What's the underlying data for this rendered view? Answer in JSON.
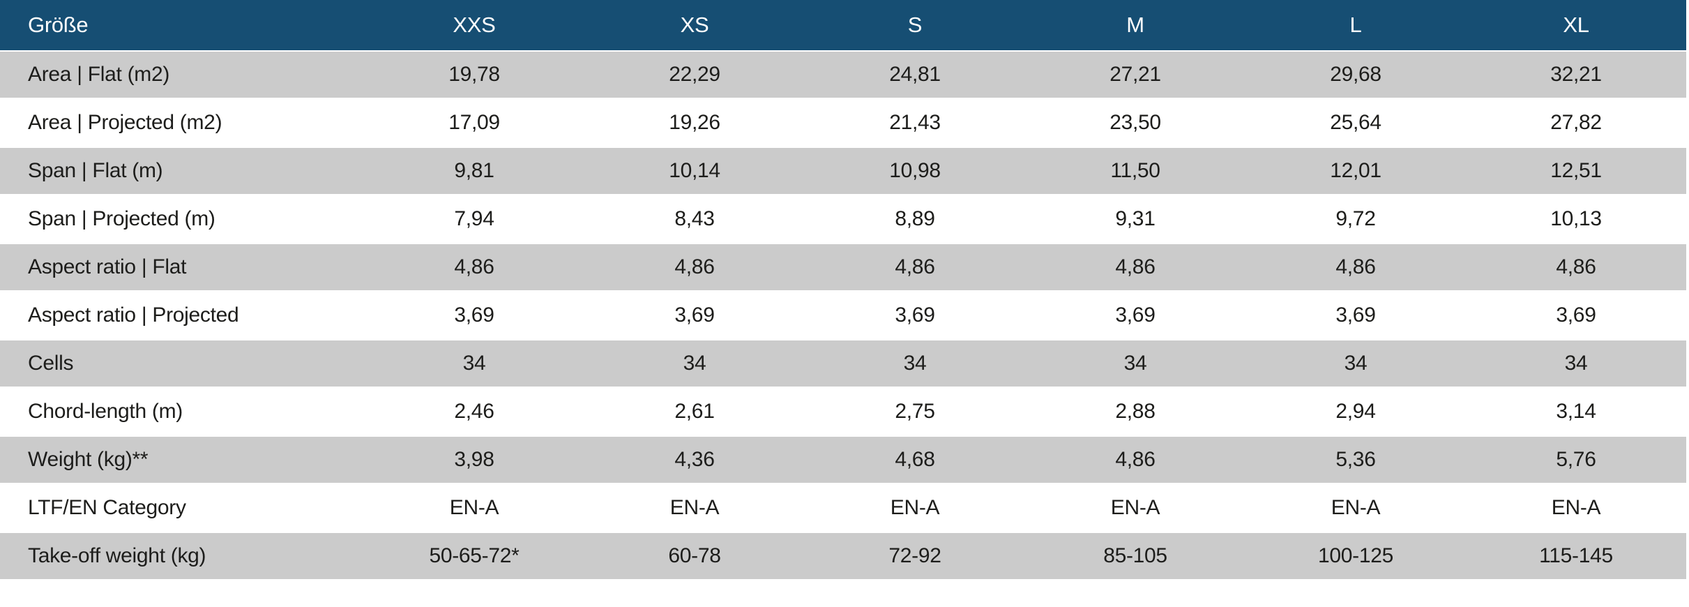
{
  "table": {
    "columns": [
      "Größe",
      "XXS",
      "XS",
      "S",
      "M",
      "L",
      "XL"
    ],
    "rows": [
      {
        "label": "Area | Flat (m2)",
        "values": [
          "19,78",
          "22,29",
          "24,81",
          "27,21",
          "29,68",
          "32,21"
        ]
      },
      {
        "label": "Area | Projected (m2)",
        "values": [
          "17,09",
          "19,26",
          "21,43",
          "23,50",
          "25,64",
          "27,82"
        ]
      },
      {
        "label": "Span | Flat (m)",
        "values": [
          "9,81",
          "10,14",
          "10,98",
          "11,50",
          "12,01",
          "12,51"
        ]
      },
      {
        "label": "Span | Projected (m)",
        "values": [
          "7,94",
          "8,43",
          "8,89",
          "9,31",
          "9,72",
          "10,13"
        ]
      },
      {
        "label": "Aspect ratio | Flat",
        "values": [
          "4,86",
          "4,86",
          "4,86",
          "4,86",
          "4,86",
          "4,86"
        ]
      },
      {
        "label": "Aspect ratio | Projected",
        "values": [
          "3,69",
          "3,69",
          "3,69",
          "3,69",
          "3,69",
          "3,69"
        ]
      },
      {
        "label": "Cells",
        "values": [
          "34",
          "34",
          "34",
          "34",
          "34",
          "34"
        ]
      },
      {
        "label": "Chord-length (m)",
        "values": [
          "2,46",
          "2,61",
          "2,75",
          "2,88",
          "2,94",
          "3,14"
        ]
      },
      {
        "label": "Weight (kg)**",
        "values": [
          "3,98",
          "4,36",
          "4,68",
          "4,86",
          "5,36",
          "5,76"
        ]
      },
      {
        "label": "LTF/EN Category",
        "values": [
          "EN-A",
          "EN-A",
          "EN-A",
          "EN-A",
          "EN-A",
          "EN-A"
        ]
      },
      {
        "label": "Take-off weight (kg)",
        "values": [
          "50-65-72*",
          "60-78",
          "72-92",
          "85-105",
          "100-125",
          "115-145"
        ]
      }
    ]
  },
  "colors": {
    "header_bg": "#164e73",
    "header_text": "#ffffff",
    "row_alt_bg": "#cbcbcb",
    "row_bg": "#ffffff",
    "body_text": "#1d1d1b"
  }
}
